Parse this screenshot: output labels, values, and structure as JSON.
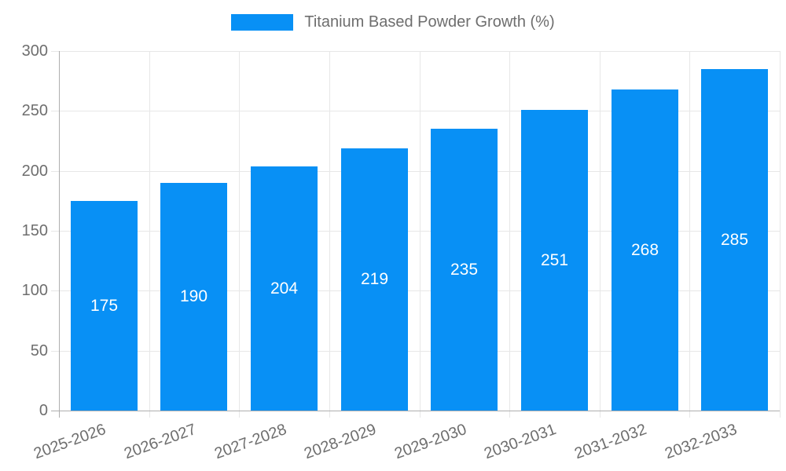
{
  "colors": {
    "bar": "#0890f5",
    "grid": "#e7e7e7",
    "axis": "#aeaeae",
    "tick_label": "#6e6e6e",
    "value_label": "#ffffff",
    "background": "#ffffff"
  },
  "chart_data": {
    "type": "bar",
    "title": "Titanium Based Powder Growth (%)",
    "series_name": "Titanium Based Powder Growth (%)",
    "categories": [
      "2025-2026",
      "2026-2027",
      "2027-2028",
      "2028-2029",
      "2029-2030",
      "2030-2031",
      "2031-2032",
      "2032-2033"
    ],
    "values": [
      175,
      190,
      204,
      219,
      235,
      251,
      268,
      285
    ],
    "xlabel": "",
    "ylabel": "",
    "ylim": [
      0,
      300
    ],
    "yticks": [
      0,
      50,
      100,
      150,
      200,
      250,
      300
    ],
    "grid": true,
    "legend_position": "top-center",
    "bar_label_position": "center",
    "x_label_rotation_deg": -20
  }
}
